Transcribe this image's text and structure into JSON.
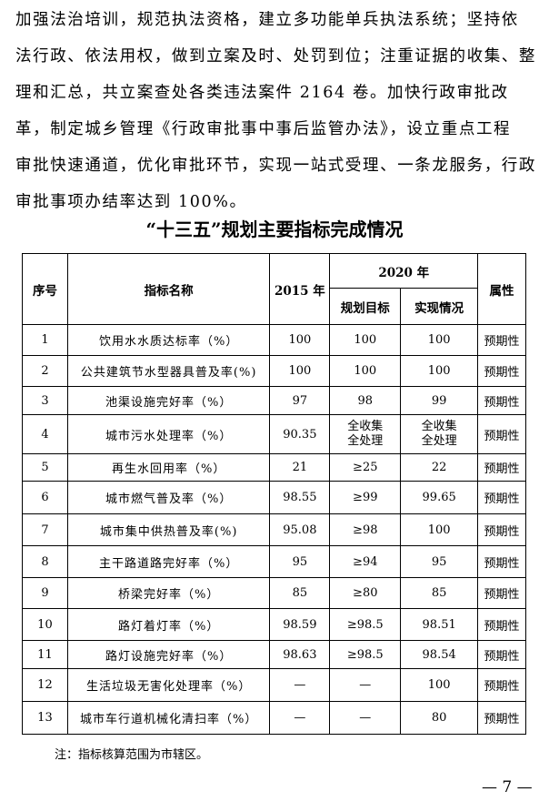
{
  "paragraph": {
    "lines": [
      "加强法治培训，规范执法资格，建立多功能单兵执法系统；坚持依",
      "法行政、依法用权，做到立案及时、处罚到位；注重证据的收集、整",
      "理和汇总，共立案查处各类违法案件 2164 卷。加快行政审批改",
      "革，制定城乡管理《行政审批事中事后监管办法》，设立重点工程",
      "审批快速通道，优化审批环节，实现一站式受理、一条龙服务，行政",
      "审批事项办结率达到 100%。"
    ]
  },
  "table_title": "“十三五”规划主要指标完成情况",
  "table": {
    "headers": {
      "index": "序号",
      "name": "指标名称",
      "y2015": "2015 年",
      "y2020": "2020 年",
      "target": "规划目标",
      "actual": "实现情况",
      "attr": "属性"
    },
    "rows": [
      {
        "no": "1",
        "name": "饮用水水质达标率（%）",
        "v2015": "100",
        "target": "100",
        "actual": "100",
        "attr": "预期性"
      },
      {
        "no": "2",
        "name": "公共建筑节水型器具普及率(%)",
        "v2015": "100",
        "target": "100",
        "actual": "100",
        "attr": "预期性"
      },
      {
        "no": "3",
        "name": "池渠设施完好率（%）",
        "v2015": "97",
        "target": "98",
        "actual": "99",
        "attr": "预期性"
      },
      {
        "no": "4",
        "name": "城市污水处理率（%）",
        "v2015": "90.35",
        "target": "全收集\n全处理",
        "actual": "全收集\n全处理",
        "attr": "预期性"
      },
      {
        "no": "5",
        "name": "再生水回用率（%）",
        "v2015": "21",
        "target": "≥25",
        "actual": "22",
        "attr": "预期性"
      },
      {
        "no": "6",
        "name": "城市燃气普及率（%）",
        "v2015": "98.55",
        "target": "≥99",
        "actual": "99.65",
        "attr": "预期性"
      },
      {
        "no": "7",
        "name": "城市集中供热普及率(%)",
        "v2015": "95.08",
        "target": "≥98",
        "actual": "100",
        "attr": "预期性"
      },
      {
        "no": "8",
        "name": "主干路道路完好率（%）",
        "v2015": "95",
        "target": "≥94",
        "actual": "95",
        "attr": "预期性"
      },
      {
        "no": "9",
        "name": "桥梁完好率（%）",
        "v2015": "85",
        "target": "≥80",
        "actual": "85",
        "attr": "预期性"
      },
      {
        "no": "10",
        "name": "路灯着灯率（%）",
        "v2015": "98.59",
        "target": "≥98.5",
        "actual": "98.51",
        "attr": "预期性"
      },
      {
        "no": "11",
        "name": "路灯设施完好率（%）",
        "v2015": "98.63",
        "target": "≥98.5",
        "actual": "98.54",
        "attr": "预期性"
      },
      {
        "no": "12",
        "name": "生活垃圾无害化处理率（%）",
        "v2015": "—",
        "target": "—",
        "actual": "100",
        "attr": "预期性"
      },
      {
        "no": "13",
        "name": "城市车行道机械化清扫率（%）",
        "v2015": "—",
        "target": "—",
        "actual": "80",
        "attr": "预期性"
      }
    ]
  },
  "note": "注：指标核算范围为市辖区。",
  "page_number": "— 7 —"
}
